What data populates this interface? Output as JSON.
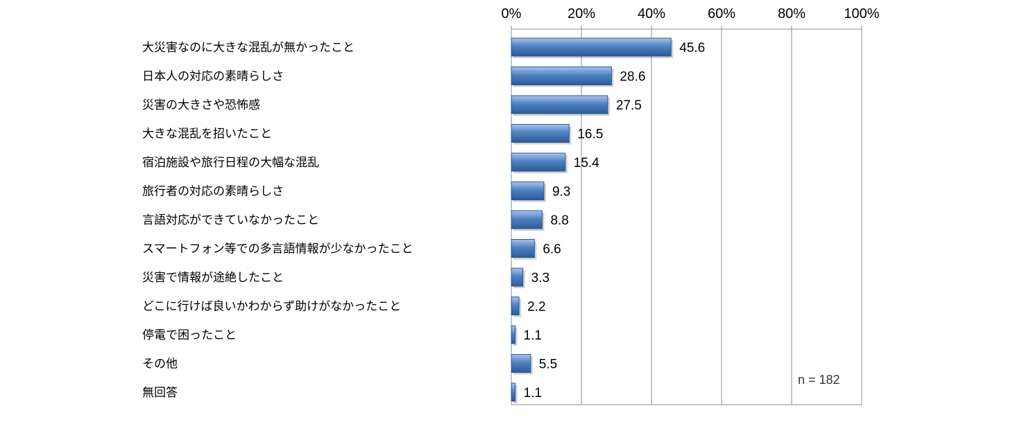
{
  "chart_data": {
    "type": "bar",
    "orientation": "horizontal",
    "categories": [
      "大災害なのに大きな混乱が無かったこと",
      "日本人の対応の素晴らしさ",
      "災害の大きさや恐怖感",
      "大きな混乱を招いたこと",
      "宿泊施設や旅行日程の大幅な混乱",
      "旅行者の対応の素晴らしさ",
      "言語対応ができていなかったこと",
      "スマートフォン等での多言語情報が少なかったこと",
      "災害で情報が途絶したこと",
      "どこに行けば良いかわからず助けがなかったこと",
      "停電で困ったこと",
      "その他",
      "無回答"
    ],
    "values": [
      45.6,
      28.6,
      27.5,
      16.5,
      15.4,
      9.3,
      8.8,
      6.6,
      3.3,
      2.2,
      1.1,
      5.5,
      1.1
    ],
    "value_labels": [
      "45.6",
      "28.6",
      "27.5",
      "16.5",
      "15.4",
      "9.3",
      "8.8",
      "6.6",
      "3.3",
      "2.2",
      "1.1",
      "5.5",
      "1.1"
    ],
    "xticks": [
      "0%",
      "20%",
      "40%",
      "60%",
      "80%",
      "100%"
    ],
    "xlim": [
      0,
      100
    ],
    "xaxis_position": "top",
    "grid": true,
    "bar_color": "#4a7ebb",
    "annotation": "n = 182",
    "title": "",
    "xlabel": "",
    "ylabel": ""
  }
}
